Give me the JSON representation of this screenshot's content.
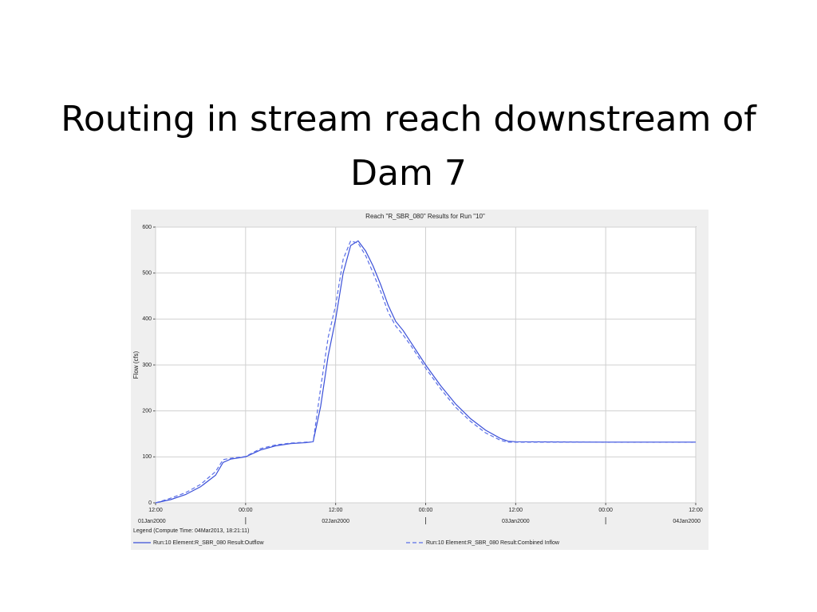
{
  "slide_title": "Routing in stream reach downstream of Dam 7",
  "chart_data": {
    "type": "line",
    "title": "Reach \"R_SBR_080\" Results for Run \"10\"",
    "ylabel": "Flow (cfs)",
    "legend_title": "Legend (Compute Time: 04Mar2013, 18:21:11)",
    "legend": "bottom",
    "grid": true,
    "x": [
      "2000-01-01T12:00",
      "2000-01-01T14:00",
      "2000-01-01T16:00",
      "2000-01-01T18:00",
      "2000-01-01T20:00",
      "2000-01-01T21:00",
      "2000-01-01T22:00",
      "2000-01-02T00:00",
      "2000-01-02T02:00",
      "2000-01-02T04:00",
      "2000-01-02T06:00",
      "2000-01-02T08:00",
      "2000-01-02T09:00",
      "2000-01-02T10:00",
      "2000-01-02T11:00",
      "2000-01-02T12:00",
      "2000-01-02T13:00",
      "2000-01-02T14:00",
      "2000-01-02T15:00",
      "2000-01-02T16:00",
      "2000-01-02T17:00",
      "2000-01-02T18:00",
      "2000-01-02T19:00",
      "2000-01-02T20:00",
      "2000-01-02T21:00",
      "2000-01-02T22:00",
      "2000-01-03T00:00",
      "2000-01-03T02:00",
      "2000-01-03T04:00",
      "2000-01-03T06:00",
      "2000-01-03T08:00",
      "2000-01-03T10:00",
      "2000-01-03T11:00",
      "2000-01-03T12:00",
      "2000-01-04T00:00",
      "2000-01-04T12:00"
    ],
    "series": [
      {
        "name": "Run:10 Element:R_SBR_080 Result:Outflow",
        "color": "#3a4fd8",
        "dash": false,
        "values": [
          0,
          7,
          18,
          35,
          60,
          88,
          95,
          100,
          115,
          124,
          129,
          131,
          133,
          210,
          320,
          400,
          500,
          560,
          570,
          548,
          515,
          475,
          430,
          395,
          375,
          350,
          300,
          255,
          215,
          183,
          158,
          140,
          134,
          133,
          132,
          132
        ]
      },
      {
        "name": "Run:10 Element:R_SBR_080 Result:Combined Inflow",
        "color": "#5a6fe8",
        "dash": true,
        "values": [
          0,
          10,
          22,
          40,
          68,
          94,
          97,
          101,
          118,
          126,
          130,
          132,
          133,
          250,
          360,
          430,
          530,
          570,
          565,
          538,
          500,
          460,
          415,
          385,
          365,
          343,
          293,
          248,
          208,
          177,
          152,
          136,
          132,
          132,
          132,
          132
        ]
      }
    ],
    "xlim": [
      "2000-01-01T12:00",
      "2000-01-04T12:00"
    ],
    "xticks": [
      {
        "value": "2000-01-01T12:00",
        "label": "12:00"
      },
      {
        "value": "2000-01-02T00:00",
        "label": "00:00"
      },
      {
        "value": "2000-01-02T12:00",
        "label": "12:00"
      },
      {
        "value": "2000-01-03T00:00",
        "label": "00:00"
      },
      {
        "value": "2000-01-03T12:00",
        "label": "12:00"
      },
      {
        "value": "2000-01-04T00:00",
        "label": "00:00"
      },
      {
        "value": "2000-01-04T12:00",
        "label": "12:00"
      }
    ],
    "date_labels": [
      {
        "value": "2000-01-01T12:00",
        "label": "01Jan2000"
      },
      {
        "value": "2000-01-02T12:00",
        "label": "02Jan2000"
      },
      {
        "value": "2000-01-03T12:00",
        "label": "03Jan2000"
      },
      {
        "value": "2000-01-04T12:00",
        "label": "04Jan2000"
      }
    ],
    "ylim": [
      0,
      600
    ],
    "yticks": [
      0,
      100,
      200,
      300,
      400,
      500,
      600
    ]
  }
}
